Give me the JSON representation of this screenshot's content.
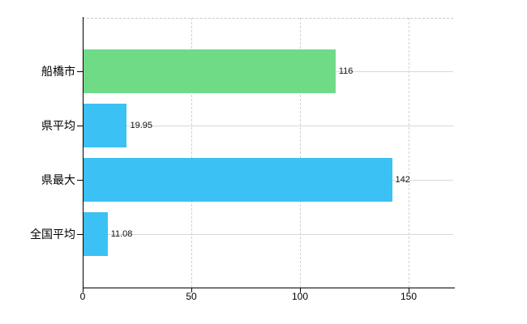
{
  "chart_data": {
    "type": "bar",
    "orientation": "horizontal",
    "title": "",
    "categories": [
      "船橋市",
      "県平均",
      "県最大",
      "全国平均"
    ],
    "values": [
      116,
      19.95,
      142,
      11.08
    ],
    "value_labels": [
      "116",
      "19.95",
      "142",
      "11.08"
    ],
    "series": [
      {
        "name": "",
        "values": [
          116,
          19.95,
          142,
          11.08
        ]
      }
    ],
    "bar_colors": [
      "#70db87",
      "#3bc1f3",
      "#3bc1f3",
      "#3bc1f3"
    ],
    "x_ticks": [
      0,
      50,
      100,
      150
    ],
    "x_tick_labels": [
      "0",
      "50",
      "100",
      "150"
    ],
    "xlim": [
      0,
      171
    ],
    "xlabel": "",
    "ylabel": "",
    "grid": true,
    "legend": "none",
    "axis_color": "#000000",
    "gridline_color": "#d8d8d8",
    "background_color": "#ffffff"
  }
}
